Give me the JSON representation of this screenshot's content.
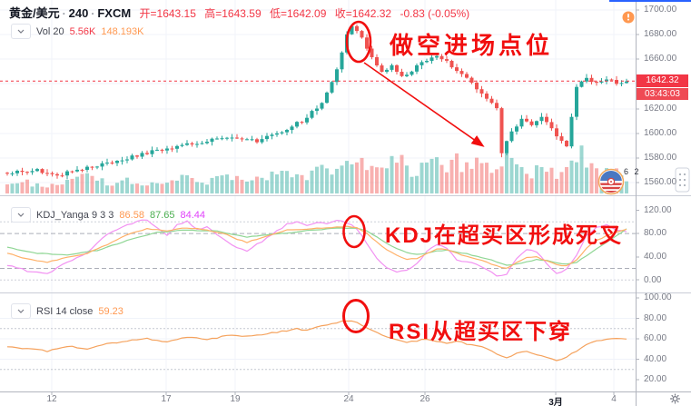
{
  "header": {
    "symbol": "黄金/美元",
    "interval": "240",
    "exchange": "FXCM",
    "sep": "·",
    "open": "开=1643.15",
    "high": "高=1643.59",
    "low": "低=1642.09",
    "close": "收=1642.32",
    "change": "-0.83 (-0.05%)"
  },
  "indicators": {
    "volume": {
      "label": "Vol 20",
      "value1": "5.56K",
      "value2": "148.193K"
    },
    "kdj": {
      "label": "KDJ_Yanga 9 3 3",
      "k": "86.58",
      "d": "87.65",
      "j": "84.44"
    },
    "rsi": {
      "label": "RSI 14 close",
      "value": "59.23"
    }
  },
  "annotations": {
    "entry": "做空进场点位",
    "kdj_cross": "KDJ在超买区形成死叉",
    "rsi_cross": "RSI从超买区下穿"
  },
  "axes": {
    "price": [
      "1700.00",
      "1680.00",
      "1660.00",
      "1620.00",
      "1600.00",
      "1580.00",
      "1560.00"
    ],
    "kdj": [
      "120.00",
      "80.00",
      "40.00",
      "0.00"
    ],
    "rsi": [
      "100.00",
      "80.00",
      "60.00",
      "40.00",
      "20.00"
    ],
    "time": [
      "12",
      "17",
      "19",
      "24",
      "26",
      "3月",
      "4"
    ]
  },
  "price_scale": {
    "last_price": "1642.32",
    "countdown": "03:43:03"
  },
  "watermark": {
    "count": "6 2"
  },
  "colors": {
    "up": "#26a69a",
    "down": "#ef5350",
    "vol_up": "rgba(38,166,154,0.45)",
    "vol_down": "rgba(239,83,80,0.45)",
    "k_line": "#ffb067",
    "d_line": "#8fd694",
    "j_line": "#f291f2",
    "rsi_line": "#f5a25d",
    "annotation": "#f10e0e",
    "badge": "#f23645",
    "axis_text": "#787b86",
    "accent_blue": "#2962ff",
    "grid": "#f0f3fa"
  },
  "chart_data": {
    "type": "candlestick_with_indicators",
    "symbol": "黄金/美元",
    "interval_minutes": 240,
    "exchange": "FXCM",
    "ohlc": {
      "open": 1643.15,
      "high": 1643.59,
      "low": 1642.09,
      "close": 1642.32,
      "change": -0.83,
      "change_pct": "-0.05%"
    },
    "last_price": 1642.32,
    "price_axis_range": [
      1552,
      1704
    ],
    "kdj_axis_range": [
      -12,
      128
    ],
    "rsi_axis_range": [
      12,
      104
    ],
    "candle_count": 125,
    "price_keypoints": [
      [
        0,
        1568
      ],
      [
        6,
        1570
      ],
      [
        10,
        1566
      ],
      [
        16,
        1572
      ],
      [
        22,
        1578
      ],
      [
        29,
        1585
      ],
      [
        36,
        1591
      ],
      [
        42,
        1595
      ],
      [
        46,
        1597
      ],
      [
        50,
        1594
      ],
      [
        55,
        1602
      ],
      [
        59,
        1610
      ],
      [
        63,
        1624
      ],
      [
        66,
        1652
      ],
      [
        68,
        1680
      ],
      [
        69,
        1688
      ],
      [
        70,
        1684
      ],
      [
        71,
        1677
      ],
      [
        73,
        1661
      ],
      [
        75,
        1649
      ],
      [
        77,
        1655
      ],
      [
        79,
        1646
      ],
      [
        81,
        1651
      ],
      [
        83,
        1658
      ],
      [
        86,
        1663
      ],
      [
        88,
        1658
      ],
      [
        90,
        1651
      ],
      [
        92,
        1645
      ],
      [
        94,
        1637
      ],
      [
        96,
        1628
      ],
      [
        98,
        1621
      ],
      [
        99,
        1585
      ],
      [
        101,
        1601
      ],
      [
        103,
        1612
      ],
      [
        105,
        1607
      ],
      [
        107,
        1613
      ],
      [
        109,
        1603
      ],
      [
        111,
        1594
      ],
      [
        112,
        1589
      ],
      [
        113,
        1612
      ],
      [
        114,
        1638
      ],
      [
        116,
        1645
      ],
      [
        118,
        1640
      ],
      [
        120,
        1644
      ],
      [
        122,
        1641
      ],
      [
        124,
        1642.3
      ]
    ],
    "volume_keypoints": [
      [
        0,
        8
      ],
      [
        4,
        12
      ],
      [
        8,
        7
      ],
      [
        12,
        13
      ],
      [
        16,
        22
      ],
      [
        20,
        10
      ],
      [
        24,
        14
      ],
      [
        28,
        9
      ],
      [
        32,
        13
      ],
      [
        36,
        17
      ],
      [
        40,
        12
      ],
      [
        44,
        18
      ],
      [
        48,
        13
      ],
      [
        52,
        17
      ],
      [
        56,
        24
      ],
      [
        60,
        19
      ],
      [
        63,
        27
      ],
      [
        66,
        21
      ],
      [
        69,
        36
      ],
      [
        72,
        28
      ],
      [
        75,
        34
      ],
      [
        78,
        44
      ],
      [
        80,
        28
      ],
      [
        82,
        24
      ],
      [
        85,
        50
      ],
      [
        88,
        27
      ],
      [
        90,
        34
      ],
      [
        93,
        24
      ],
      [
        95,
        40
      ],
      [
        97,
        30
      ],
      [
        99,
        42
      ],
      [
        101,
        34
      ],
      [
        103,
        27
      ],
      [
        105,
        21
      ],
      [
        107,
        34
      ],
      [
        109,
        24
      ],
      [
        111,
        19
      ],
      [
        113,
        36
      ],
      [
        115,
        44
      ],
      [
        117,
        26
      ],
      [
        119,
        21
      ],
      [
        121,
        29
      ],
      [
        124,
        16
      ]
    ],
    "kdj": {
      "k": [
        [
          0,
          46
        ],
        [
          4,
          36
        ],
        [
          8,
          31
        ],
        [
          12,
          39
        ],
        [
          16,
          46
        ],
        [
          20,
          61
        ],
        [
          24,
          78
        ],
        [
          28,
          88
        ],
        [
          32,
          85
        ],
        [
          36,
          90
        ],
        [
          40,
          86
        ],
        [
          44,
          79
        ],
        [
          46,
          70
        ],
        [
          48,
          65
        ],
        [
          52,
          76
        ],
        [
          56,
          86
        ],
        [
          60,
          88
        ],
        [
          64,
          90
        ],
        [
          68,
          92
        ],
        [
          70,
          90
        ],
        [
          72,
          80
        ],
        [
          74,
          65
        ],
        [
          76,
          52
        ],
        [
          78,
          43
        ],
        [
          80,
          36
        ],
        [
          82,
          37
        ],
        [
          84,
          45
        ],
        [
          86,
          54
        ],
        [
          88,
          52
        ],
        [
          90,
          46
        ],
        [
          92,
          41
        ],
        [
          94,
          36
        ],
        [
          96,
          31
        ],
        [
          98,
          24
        ],
        [
          100,
          20
        ],
        [
          102,
          30
        ],
        [
          104,
          38
        ],
        [
          106,
          40
        ],
        [
          108,
          33
        ],
        [
          110,
          26
        ],
        [
          112,
          24
        ],
        [
          114,
          34
        ],
        [
          116,
          55
        ],
        [
          118,
          68
        ],
        [
          120,
          76
        ],
        [
          122,
          82
        ],
        [
          124,
          86.6
        ]
      ],
      "d": [
        [
          0,
          56
        ],
        [
          6,
          46
        ],
        [
          12,
          43
        ],
        [
          18,
          51
        ],
        [
          24,
          68
        ],
        [
          30,
          82
        ],
        [
          36,
          86
        ],
        [
          42,
          84
        ],
        [
          48,
          74
        ],
        [
          54,
          79
        ],
        [
          60,
          85
        ],
        [
          66,
          89
        ],
        [
          70,
          89
        ],
        [
          72,
          84
        ],
        [
          74,
          74
        ],
        [
          76,
          63
        ],
        [
          78,
          54
        ],
        [
          80,
          47
        ],
        [
          82,
          44
        ],
        [
          84,
          46
        ],
        [
          86,
          50
        ],
        [
          88,
          51
        ],
        [
          90,
          48
        ],
        [
          92,
          45
        ],
        [
          94,
          41
        ],
        [
          96,
          37
        ],
        [
          98,
          31
        ],
        [
          100,
          26
        ],
        [
          102,
          27
        ],
        [
          104,
          31
        ],
        [
          106,
          35
        ],
        [
          108,
          34
        ],
        [
          110,
          30
        ],
        [
          112,
          27
        ],
        [
          114,
          30
        ],
        [
          116,
          42
        ],
        [
          118,
          54
        ],
        [
          120,
          65
        ],
        [
          122,
          76
        ],
        [
          124,
          87.7
        ]
      ],
      "j": [
        [
          0,
          26
        ],
        [
          4,
          16
        ],
        [
          8,
          11
        ],
        [
          12,
          31
        ],
        [
          16,
          48
        ],
        [
          20,
          78
        ],
        [
          24,
          95
        ],
        [
          26,
          100
        ],
        [
          28,
          104
        ],
        [
          30,
          90
        ],
        [
          32,
          76
        ],
        [
          34,
          94
        ],
        [
          36,
          101
        ],
        [
          38,
          86
        ],
        [
          40,
          91
        ],
        [
          42,
          78
        ],
        [
          44,
          66
        ],
        [
          46,
          55
        ],
        [
          48,
          50
        ],
        [
          52,
          72
        ],
        [
          56,
          96
        ],
        [
          58,
          101
        ],
        [
          60,
          93
        ],
        [
          62,
          99
        ],
        [
          64,
          96
        ],
        [
          66,
          102
        ],
        [
          68,
          99
        ],
        [
          70,
          88
        ],
        [
          72,
          64
        ],
        [
          74,
          38
        ],
        [
          76,
          22
        ],
        [
          78,
          13
        ],
        [
          80,
          18
        ],
        [
          82,
          28
        ],
        [
          84,
          48
        ],
        [
          86,
          62
        ],
        [
          88,
          54
        ],
        [
          90,
          36
        ],
        [
          92,
          31
        ],
        [
          94,
          26
        ],
        [
          96,
          19
        ],
        [
          98,
          6
        ],
        [
          100,
          10
        ],
        [
          102,
          38
        ],
        [
          104,
          52
        ],
        [
          106,
          48
        ],
        [
          108,
          28
        ],
        [
          110,
          12
        ],
        [
          112,
          18
        ],
        [
          114,
          44
        ],
        [
          116,
          78
        ],
        [
          118,
          90
        ],
        [
          120,
          94
        ],
        [
          122,
          86
        ],
        [
          124,
          84.4
        ]
      ]
    },
    "rsi_keypoints": [
      [
        0,
        52
      ],
      [
        4,
        50
      ],
      [
        8,
        48
      ],
      [
        12,
        53
      ],
      [
        16,
        50
      ],
      [
        20,
        55
      ],
      [
        24,
        58
      ],
      [
        28,
        60
      ],
      [
        32,
        57
      ],
      [
        36,
        62
      ],
      [
        40,
        59
      ],
      [
        44,
        63
      ],
      [
        48,
        62
      ],
      [
        52,
        65
      ],
      [
        56,
        68
      ],
      [
        58,
        70
      ],
      [
        60,
        68
      ],
      [
        62,
        72
      ],
      [
        64,
        73
      ],
      [
        66,
        76
      ],
      [
        68,
        78
      ],
      [
        70,
        76
      ],
      [
        72,
        70
      ],
      [
        74,
        66
      ],
      [
        76,
        62
      ],
      [
        78,
        59
      ],
      [
        80,
        56
      ],
      [
        82,
        58
      ],
      [
        84,
        60
      ],
      [
        86,
        58
      ],
      [
        88,
        56
      ],
      [
        90,
        58
      ],
      [
        92,
        55
      ],
      [
        94,
        53
      ],
      [
        96,
        51
      ],
      [
        98,
        45
      ],
      [
        100,
        41
      ],
      [
        102,
        46
      ],
      [
        104,
        48
      ],
      [
        106,
        45
      ],
      [
        108,
        42
      ],
      [
        110,
        38
      ],
      [
        112,
        42
      ],
      [
        114,
        48
      ],
      [
        116,
        55
      ],
      [
        118,
        58
      ],
      [
        120,
        60
      ],
      [
        122,
        60
      ],
      [
        124,
        59.2
      ]
    ]
  }
}
